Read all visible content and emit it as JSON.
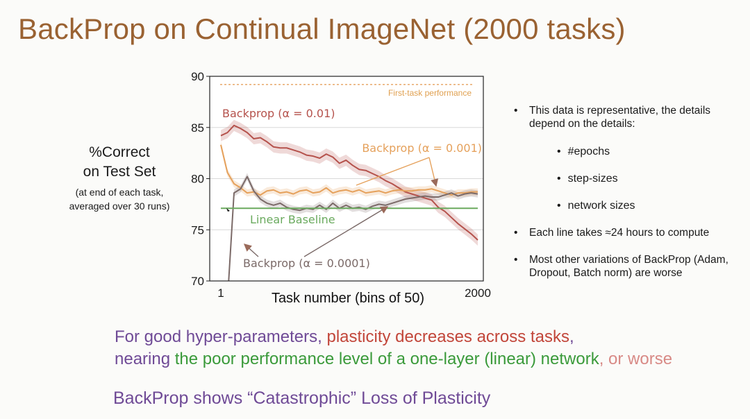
{
  "slide": {
    "title": "BackProp on Continual ImageNet (2000 tasks)",
    "ylabel_lines": [
      "%Correct",
      "on Test Set",
      "(at end of each task,",
      "averaged over 30 runs)"
    ]
  },
  "chart_data": {
    "type": "line",
    "xlabel": "Task number (bins of 50)",
    "x_tick_labels": [
      "1",
      "2000"
    ],
    "ylim": [
      70,
      90
    ],
    "y_ticks": [
      70,
      75,
      80,
      85,
      90
    ],
    "grid": true,
    "x": [
      1,
      2,
      3,
      4,
      5,
      6,
      7,
      8,
      9,
      10,
      11,
      12,
      13,
      14,
      15,
      16,
      17,
      18,
      19,
      20,
      21,
      22,
      23,
      24,
      25,
      26,
      27,
      28,
      29,
      30,
      31,
      32,
      33,
      34,
      35,
      36,
      37,
      38,
      39,
      40
    ],
    "series": [
      {
        "name": "Backprop (α = 0.01)",
        "color": "#b5524c",
        "values": [
          84.2,
          84.5,
          85.2,
          84.9,
          84.5,
          83.9,
          84.0,
          83.6,
          83.1,
          83.0,
          83.0,
          82.8,
          82.6,
          82.3,
          82.2,
          82.0,
          82.4,
          82.1,
          81.5,
          81.8,
          81.3,
          80.9,
          80.8,
          80.5,
          80.2,
          79.8,
          79.5,
          79.1,
          78.7,
          78.5,
          78.3,
          78.1,
          77.9,
          77.2,
          76.8,
          76.2,
          75.6,
          75.1,
          74.6,
          74.0
        ]
      },
      {
        "name": "Backprop (α = 0.001)",
        "color": "#e5a15c",
        "values": [
          83.3,
          80.6,
          79.5,
          79.1,
          78.6,
          78.7,
          78.4,
          78.8,
          78.9,
          78.6,
          78.7,
          78.5,
          78.8,
          78.9,
          78.6,
          78.7,
          79.1,
          78.6,
          78.8,
          78.9,
          78.7,
          78.9,
          78.6,
          78.7,
          78.8,
          78.6,
          78.8,
          78.9,
          78.8,
          78.8,
          78.9,
          78.9,
          79.0,
          78.8,
          78.6,
          78.4,
          78.6,
          78.6,
          78.7,
          78.7
        ]
      },
      {
        "name": "Backprop (α = 0.0001)",
        "color": "#7b6a68",
        "values": [
          55.0,
          68.0,
          78.6,
          79.0,
          80.2,
          78.8,
          78.0,
          77.6,
          77.4,
          77.6,
          77.2,
          77.0,
          76.9,
          77.1,
          77.0,
          77.4,
          77.0,
          77.6,
          77.1,
          77.4,
          77.1,
          77.2,
          77.0,
          77.3,
          77.5,
          77.4,
          77.6,
          77.8,
          78.0,
          78.1,
          78.2,
          78.3,
          78.2,
          78.2,
          78.4,
          78.6,
          78.3,
          78.5,
          78.6,
          78.5
        ]
      },
      {
        "name": "Linear Baseline",
        "color": "#6aaa5e",
        "values": [
          77.1,
          77.1,
          77.1,
          77.1,
          77.1,
          77.1,
          77.1,
          77.1,
          77.1,
          77.1,
          77.1,
          77.1,
          77.1,
          77.1,
          77.1,
          77.1,
          77.1,
          77.1,
          77.1,
          77.1,
          77.1,
          77.1,
          77.1,
          77.1,
          77.1,
          77.1,
          77.1,
          77.1,
          77.1,
          77.1,
          77.1,
          77.1,
          77.1,
          77.1,
          77.1,
          77.1,
          77.1,
          77.1,
          77.1,
          77.1
        ]
      }
    ],
    "reference_line": {
      "name": "First-task performance",
      "value": 89.2,
      "color": "#e5a15c"
    }
  },
  "bullets": {
    "b1": "This data is representative, the details depend on the details:",
    "subs": [
      "#epochs",
      "step-sizes",
      "network sizes"
    ],
    "b2": "Each line takes ≈24 hours to compute",
    "b3": "Most other variations of BackProp (Adam, Dropout, Batch norm) are worse"
  },
  "message": {
    "l1a": "For good hyper-parameters, ",
    "l1b": "plasticity decreases across tasks",
    "l1c": ",",
    "l2a": "nearing ",
    "l2b": "the poor performance level of a one-layer (linear) network",
    "l2c": ", or worse"
  },
  "bottom": "BackProp shows “Catastrophic” Loss of Plasticity",
  "bullet_char": "•"
}
